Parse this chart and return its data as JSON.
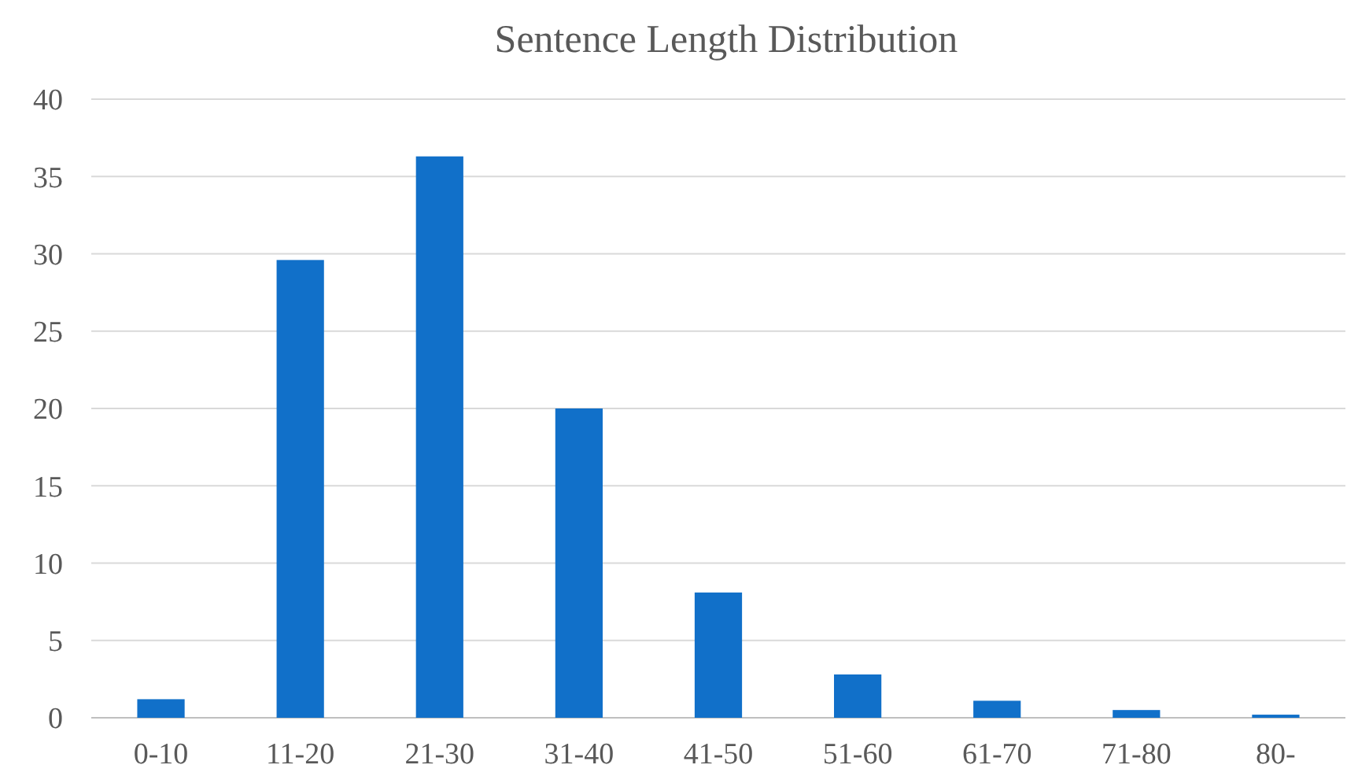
{
  "chart_data": {
    "type": "bar",
    "title": "Sentence Length Distribution",
    "categories": [
      "0-10",
      "11-20",
      "21-30",
      "31-40",
      "41-50",
      "51-60",
      "61-70",
      "71-80",
      "80-"
    ],
    "values": [
      1.2,
      29.6,
      36.3,
      20,
      8.1,
      2.8,
      1.1,
      0.5,
      0.2
    ],
    "color": "#1170c9",
    "ylim": [
      0,
      40
    ],
    "yticks": [
      0,
      5,
      10,
      15,
      20,
      25,
      30,
      35,
      40
    ],
    "grid": "y"
  }
}
